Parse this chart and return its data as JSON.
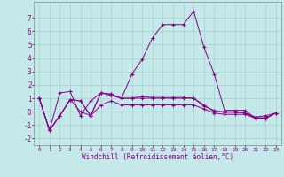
{
  "xlabel": "Windchill (Refroidissement éolien,°C)",
  "background_color": "#c5e8e8",
  "grid_color": "#a8d0d0",
  "line_color": "#880088",
  "xlim": [
    -0.5,
    23.5
  ],
  "ylim": [
    -2.5,
    8.2
  ],
  "yticks": [
    -2,
    -1,
    0,
    1,
    2,
    3,
    4,
    5,
    6,
    7
  ],
  "xticks": [
    0,
    1,
    2,
    3,
    4,
    5,
    6,
    7,
    8,
    9,
    10,
    11,
    12,
    13,
    14,
    15,
    16,
    17,
    18,
    19,
    20,
    21,
    22,
    23
  ],
  "series1_x": [
    0,
    1,
    2,
    3,
    4,
    5,
    6,
    7,
    8,
    9,
    10,
    11,
    12,
    13,
    14,
    15,
    16,
    17,
    18,
    19,
    20,
    21,
    22,
    23
  ],
  "series1_y": [
    1.0,
    -1.4,
    -0.3,
    0.9,
    0.8,
    -0.3,
    1.4,
    1.2,
    1.0,
    1.0,
    1.15,
    1.05,
    1.05,
    1.05,
    1.05,
    1.0,
    0.4,
    0.1,
    -0.05,
    -0.05,
    -0.1,
    -0.45,
    -0.45,
    -0.1
  ],
  "series2_x": [
    0,
    1,
    2,
    3,
    4,
    5,
    6,
    7,
    8,
    9,
    10,
    11,
    12,
    13,
    14,
    15,
    16,
    17,
    18,
    19,
    20,
    21,
    22,
    23
  ],
  "series2_y": [
    1.0,
    -1.4,
    -0.3,
    0.9,
    0.8,
    -0.3,
    1.4,
    1.3,
    1.0,
    2.8,
    3.9,
    5.5,
    6.5,
    6.5,
    6.5,
    7.5,
    4.8,
    2.8,
    0.1,
    0.1,
    0.1,
    -0.5,
    -0.5,
    -0.1
  ],
  "series3_x": [
    0,
    1,
    2,
    3,
    4,
    5,
    6,
    7,
    8,
    9,
    10,
    11,
    12,
    13,
    14,
    15,
    16,
    17,
    18,
    19,
    20,
    21,
    22,
    23
  ],
  "series3_y": [
    1.0,
    -1.4,
    1.4,
    1.5,
    -0.3,
    0.8,
    1.4,
    1.3,
    1.0,
    1.0,
    1.0,
    1.0,
    1.0,
    1.0,
    1.0,
    1.0,
    0.5,
    0.0,
    0.0,
    0.0,
    -0.1,
    -0.4,
    -0.3,
    -0.1
  ],
  "series4_x": [
    0,
    1,
    2,
    3,
    4,
    5,
    6,
    7,
    8,
    9,
    10,
    11,
    12,
    13,
    14,
    15,
    16,
    17,
    18,
    19,
    20,
    21,
    22,
    23
  ],
  "series4_y": [
    1.0,
    -1.4,
    -0.3,
    0.9,
    0.0,
    -0.3,
    0.5,
    0.8,
    0.5,
    0.5,
    0.5,
    0.5,
    0.5,
    0.5,
    0.5,
    0.5,
    0.2,
    -0.1,
    -0.2,
    -0.2,
    -0.2,
    -0.5,
    -0.5,
    -0.1
  ]
}
